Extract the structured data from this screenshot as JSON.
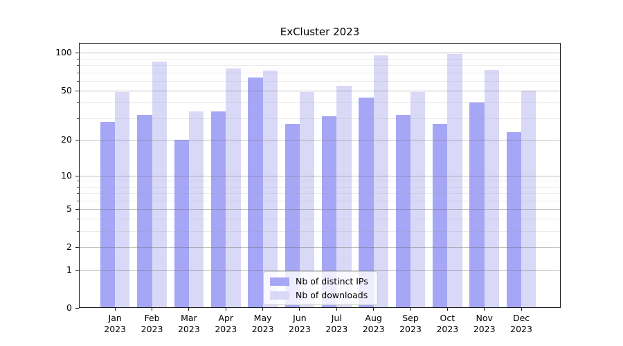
{
  "title": "ExCluster 2023",
  "chart_data": {
    "type": "bar",
    "title": "ExCluster 2023",
    "categories": [
      "Jan 2023",
      "Feb 2023",
      "Mar 2023",
      "Apr 2023",
      "May 2023",
      "Jun 2023",
      "Jul 2023",
      "Aug 2023",
      "Sep 2023",
      "Oct 2023",
      "Nov 2023",
      "Dec 2023"
    ],
    "series": [
      {
        "name": "Nb of distinct IPs",
        "color": "#a6a6f6",
        "values": [
          28,
          32,
          20,
          34,
          64,
          27,
          31,
          44,
          32,
          27,
          40,
          23
        ]
      },
      {
        "name": "Nb of downloads",
        "color": "#d9d9f7",
        "values": [
          49,
          85,
          34,
          75,
          72,
          49,
          55,
          95,
          49,
          98,
          73,
          50
        ]
      }
    ],
    "xlabel": "",
    "ylabel": "",
    "yscale": "log1p",
    "ylim": [
      0,
      120
    ],
    "y_major_ticks": [
      0,
      1,
      2,
      5,
      10,
      20,
      50,
      100
    ],
    "y_minor_ticks": [
      3,
      4,
      6,
      7,
      8,
      9,
      30,
      40,
      60,
      70,
      80,
      90
    ],
    "grid": true,
    "legend_position": "lower center"
  },
  "colors": {
    "background": "#ffffff",
    "bar_dark": "#a6a6f6",
    "bar_light": "#d9d9f7",
    "grid_major": "#6e6e6e",
    "grid_minor": "#c8c8c8",
    "spine": "#1a1a1a",
    "legend_border": "#cccccc"
  }
}
